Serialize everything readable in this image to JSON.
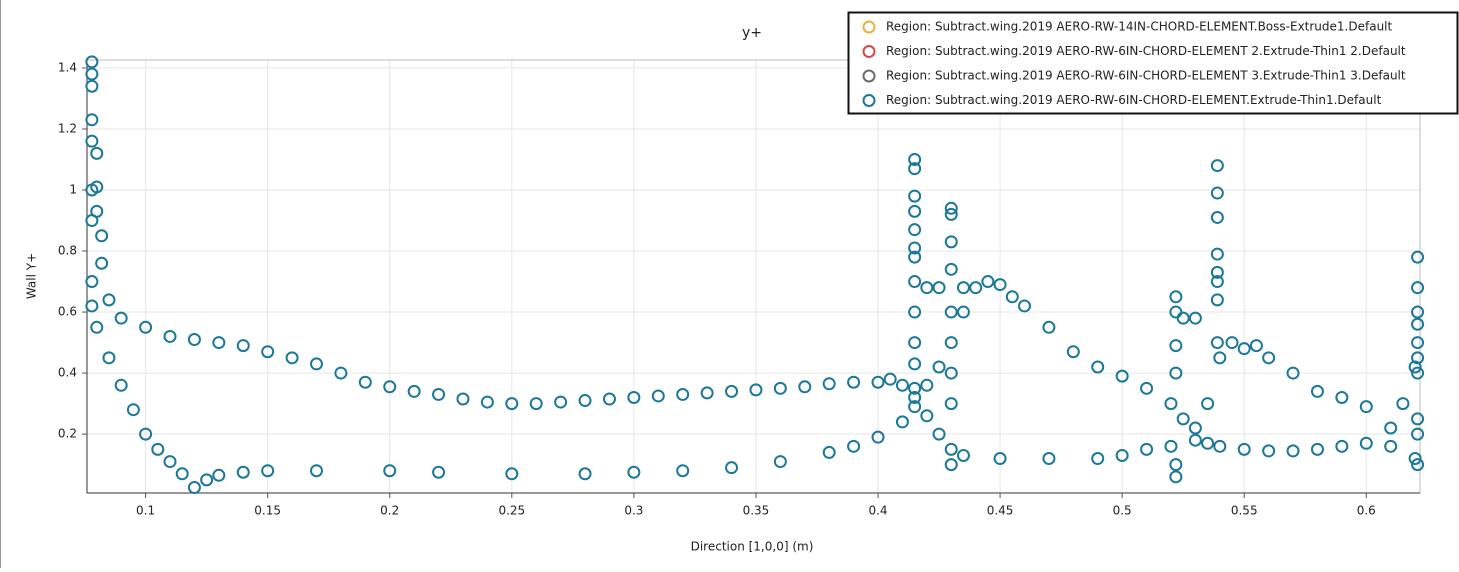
{
  "chart_data": {
    "type": "scatter",
    "title": "y+",
    "x_label": "Direction [1,0,0] (m)",
    "y_label": "Wall Y+",
    "xlim": [
      0.076,
      0.622
    ],
    "ylim": [
      0.007,
      1.426
    ],
    "xticks": [
      0.1,
      0.15,
      0.2,
      0.25,
      0.3,
      0.35,
      0.4,
      0.45,
      0.5,
      0.55,
      0.6
    ],
    "yticks": [
      0.2,
      0.4,
      0.6,
      0.8,
      1,
      1.2,
      1.4
    ],
    "grid": true,
    "legend": "upper right",
    "series": [
      {
        "name": "Region: Subtract.wing.2019 AERO-RW-14IN-CHORD-ELEMENT.Boss-Extrude1.Default",
        "color": "#e8b040",
        "x": [],
        "values": []
      },
      {
        "name": "Region: Subtract.wing.2019 AERO-RW-6IN-CHORD-ELEMENT 2.Extrude-Thin1 2.Default",
        "color": "#d9434b",
        "x": [],
        "values": []
      },
      {
        "name": "Region: Subtract.wing.2019 AERO-RW-6IN-CHORD-ELEMENT 3.Extrude-Thin1 3.Default",
        "color": "#6b6b6b",
        "x": [],
        "values": []
      },
      {
        "name": "Region: Subtract.wing.2019 AERO-RW-6IN-CHORD-ELEMENT.Extrude-Thin1.Default",
        "color": "#1b7896",
        "x": [
          0.078,
          0.085,
          0.09,
          0.1,
          0.11,
          0.12,
          0.13,
          0.14,
          0.15,
          0.16,
          0.17,
          0.18,
          0.19,
          0.2,
          0.21,
          0.22,
          0.23,
          0.24,
          0.25,
          0.26,
          0.27,
          0.28,
          0.29,
          0.3,
          0.31,
          0.32,
          0.33,
          0.34,
          0.35,
          0.36,
          0.37,
          0.38,
          0.39,
          0.4,
          0.405,
          0.41,
          0.415,
          0.42,
          0.425,
          0.43,
          0.435,
          0.45,
          0.47,
          0.49,
          0.5,
          0.51,
          0.52,
          0.53,
          0.535,
          0.54,
          0.55,
          0.56,
          0.57,
          0.58,
          0.59,
          0.6,
          0.61,
          0.62,
          0.078,
          0.08,
          0.085,
          0.09,
          0.095,
          0.1,
          0.105,
          0.11,
          0.115,
          0.12,
          0.125,
          0.13,
          0.14,
          0.15,
          0.17,
          0.2,
          0.22,
          0.25,
          0.28,
          0.3,
          0.32,
          0.34,
          0.36,
          0.38,
          0.39,
          0.4,
          0.41,
          0.415,
          0.42,
          0.425,
          0.43,
          0.435,
          0.44,
          0.445,
          0.45,
          0.455,
          0.46,
          0.47,
          0.48,
          0.49,
          0.5,
          0.51,
          0.52,
          0.525,
          0.53,
          0.535,
          0.54,
          0.545,
          0.55,
          0.555,
          0.56,
          0.57,
          0.58,
          0.59,
          0.6,
          0.61,
          0.615,
          0.62,
          0.078,
          0.078,
          0.078,
          0.078,
          0.078,
          0.078,
          0.078,
          0.08,
          0.08,
          0.08,
          0.082,
          0.082,
          0.415,
          0.415,
          0.415,
          0.415,
          0.415,
          0.415,
          0.415,
          0.415,
          0.415,
          0.415,
          0.415,
          0.415,
          0.43,
          0.43,
          0.43,
          0.43,
          0.43,
          0.43,
          0.43,
          0.43,
          0.522,
          0.522,
          0.522,
          0.522,
          0.522,
          0.522,
          0.539,
          0.539,
          0.539,
          0.539,
          0.539,
          0.539,
          0.539,
          0.539,
          0.621,
          0.621,
          0.621,
          0.621,
          0.621,
          0.621,
          0.621,
          0.621,
          0.621,
          0.621,
          0.42,
          0.425,
          0.435,
          0.525,
          0.53
        ],
        "values": [
          0.7,
          0.64,
          0.58,
          0.55,
          0.52,
          0.51,
          0.5,
          0.49,
          0.47,
          0.45,
          0.43,
          0.4,
          0.37,
          0.355,
          0.34,
          0.33,
          0.315,
          0.305,
          0.3,
          0.3,
          0.305,
          0.31,
          0.315,
          0.32,
          0.325,
          0.33,
          0.335,
          0.34,
          0.345,
          0.35,
          0.355,
          0.365,
          0.37,
          0.37,
          0.38,
          0.36,
          0.32,
          0.26,
          0.2,
          0.15,
          0.13,
          0.12,
          0.12,
          0.12,
          0.13,
          0.15,
          0.16,
          0.18,
          0.17,
          0.16,
          0.15,
          0.145,
          0.145,
          0.15,
          0.16,
          0.17,
          0.16,
          0.12,
          0.62,
          0.55,
          0.45,
          0.36,
          0.28,
          0.2,
          0.15,
          0.11,
          0.07,
          0.025,
          0.05,
          0.065,
          0.075,
          0.08,
          0.08,
          0.08,
          0.075,
          0.07,
          0.07,
          0.075,
          0.08,
          0.09,
          0.11,
          0.14,
          0.16,
          0.19,
          0.24,
          0.29,
          0.36,
          0.42,
          0.5,
          0.6,
          0.68,
          0.7,
          0.69,
          0.65,
          0.62,
          0.55,
          0.47,
          0.42,
          0.39,
          0.35,
          0.3,
          0.25,
          0.22,
          0.3,
          0.45,
          0.5,
          0.48,
          0.49,
          0.45,
          0.4,
          0.34,
          0.32,
          0.29,
          0.22,
          0.3,
          0.42,
          0.9,
          1.0,
          1.16,
          1.23,
          1.34,
          1.38,
          1.42,
          1.12,
          1.01,
          0.93,
          0.85,
          0.76,
          1.1,
          1.07,
          0.98,
          0.93,
          0.87,
          0.81,
          0.78,
          0.7,
          0.6,
          0.5,
          0.43,
          0.35,
          0.94,
          0.92,
          0.83,
          0.74,
          0.6,
          0.4,
          0.3,
          0.1,
          0.65,
          0.6,
          0.49,
          0.4,
          0.1,
          0.06,
          1.08,
          0.99,
          0.91,
          0.79,
          0.73,
          0.7,
          0.64,
          0.5,
          0.78,
          0.68,
          0.6,
          0.56,
          0.5,
          0.45,
          0.4,
          0.25,
          0.2,
          0.1,
          0.68,
          0.68,
          0.68,
          0.58,
          0.58
        ]
      }
    ]
  }
}
